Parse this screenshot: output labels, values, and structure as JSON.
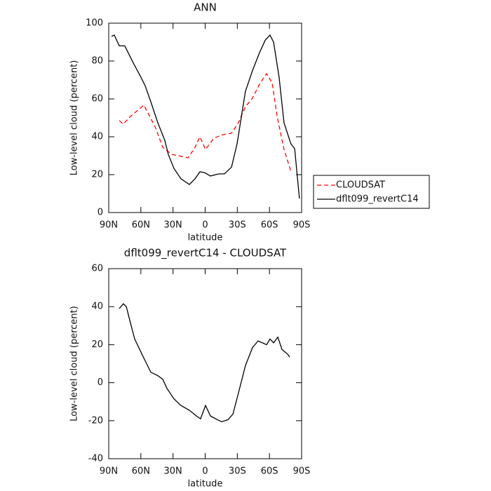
{
  "chart_data": [
    {
      "type": "line",
      "title": "ANN",
      "xlabel": "latitude",
      "ylabel": "Low-level cloud (percent)",
      "xlim": [
        90,
        -90
      ],
      "ylim": [
        0,
        100
      ],
      "xticks": [
        {
          "value": 90,
          "label": "90N"
        },
        {
          "value": 60,
          "label": "60N"
        },
        {
          "value": 30,
          "label": "30N"
        },
        0,
        {
          "value": -30,
          "label": "30S"
        },
        {
          "value": -60,
          "label": "60S"
        },
        {
          "value": -90,
          "label": "90S"
        }
      ],
      "yticks": [
        0,
        20,
        40,
        60,
        80,
        100
      ],
      "legend": "right",
      "series": [
        {
          "name": "CLOUDSAT",
          "color": "#ff0000",
          "dashed": true,
          "x": [
            80.2,
            76.3,
            70.4,
            57.3,
            52.7,
            46.1,
            39.6,
            31.1,
            16,
            9.5,
            4.9,
            -0.3,
            -8.2,
            -16.7,
            -24.6,
            -31,
            -37.6,
            -44.2,
            -50.7,
            -57.3,
            -62.5,
            -67.1,
            -73.6,
            -80.2
          ],
          "values": [
            48.5,
            46.7,
            50.4,
            56.7,
            51.9,
            44.4,
            34.4,
            30.7,
            28.9,
            34.4,
            40,
            33.3,
            39.3,
            41.1,
            41.9,
            47.4,
            55.9,
            60.4,
            67.8,
            73.3,
            68.5,
            51,
            33.3,
            21.5
          ]
        },
        {
          "name": "dflt099_revertC14",
          "color": "#000000",
          "dashed": false,
          "x": [
            87.4,
            84.8,
            80.2,
            75,
            67.1,
            60.5,
            56,
            50.7,
            44.2,
            37.6,
            34.4,
            29.1,
            22.6,
            14.7,
            9.5,
            4.9,
            0.3,
            -4.9,
            -12.8,
            -18,
            -24.6,
            -29.8,
            -37.6,
            -44.2,
            -50.7,
            -56,
            -60.5,
            -63.8,
            -69,
            -73.6,
            -80,
            -83.5,
            -88
          ],
          "values": [
            93,
            93.7,
            88,
            88,
            79,
            72,
            67,
            58.5,
            47.4,
            38,
            30.7,
            23.3,
            17.8,
            14.8,
            17.8,
            21.5,
            21,
            19.3,
            20.4,
            20.4,
            24,
            36.3,
            64,
            75,
            84.4,
            91,
            93.7,
            90,
            71.5,
            47.4,
            36.3,
            33.7,
            7.4
          ]
        }
      ]
    },
    {
      "type": "line",
      "title": "dflt099_revertC14 - CLOUDSAT",
      "xlabel": "latitude",
      "ylabel": "Low-level cloud (percent)",
      "xlim": [
        90,
        -90
      ],
      "ylim": [
        -40,
        60
      ],
      "xticks": [
        {
          "value": 90,
          "label": "90N"
        },
        {
          "value": 60,
          "label": "60N"
        },
        {
          "value": 30,
          "label": "30N"
        },
        0,
        {
          "value": -30,
          "label": "30S"
        },
        {
          "value": -60,
          "label": "60S"
        },
        {
          "value": -90,
          "label": "90S"
        }
      ],
      "yticks": [
        -40,
        -20,
        0,
        20,
        40,
        60
      ],
      "series": [
        {
          "color": "#000000",
          "dashed": false,
          "x": [
            80.2,
            76.3,
            73.6,
            70.4,
            65.8,
            57.3,
            50.7,
            44.2,
            39.6,
            35.7,
            29.1,
            22.6,
            14.7,
            8.2,
            4.3,
            -0.3,
            -4.9,
            -11.5,
            -15.4,
            -21.3,
            -25.9,
            -31,
            -37.6,
            -44.2,
            -49.4,
            -57.3,
            -60.5,
            -63.8,
            -67.8,
            -71.7,
            -77,
            -78.9
          ],
          "values": [
            39,
            41.5,
            40,
            33,
            23,
            13,
            5.5,
            3.7,
            1.8,
            -3,
            -8.5,
            -12,
            -14.5,
            -17.5,
            -19,
            -12,
            -17.5,
            -19.5,
            -20.5,
            -19.5,
            -16.5,
            -5.5,
            9,
            18.5,
            22,
            20,
            23,
            21,
            24,
            17.5,
            15,
            13.5
          ]
        }
      ]
    }
  ]
}
